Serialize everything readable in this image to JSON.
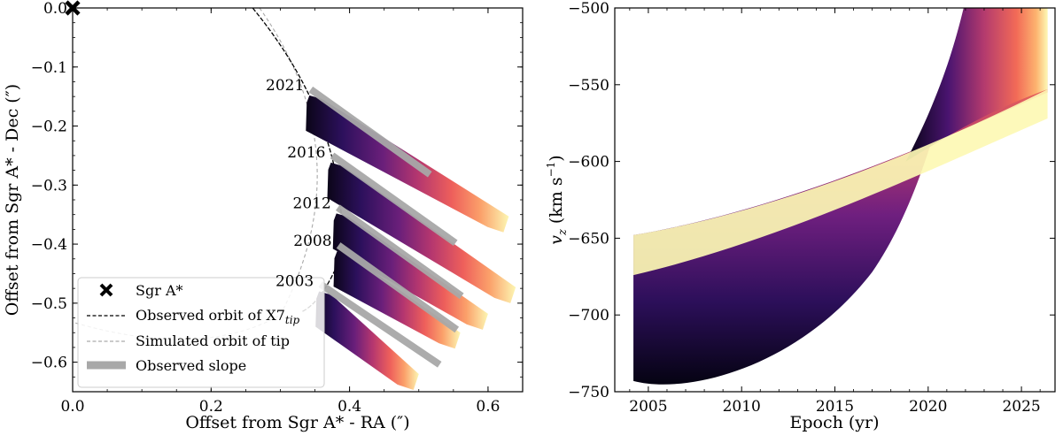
{
  "chart_data": [
    {
      "type": "scatter",
      "title": "",
      "xlabel": "Offset from Sgr A* - RA (″)",
      "ylabel": "Offset from Sgr A* - Dec (″)",
      "xlim": [
        0.0,
        0.65
      ],
      "ylim": [
        -0.65,
        0.0
      ],
      "xticks": [
        {
          "v": 0.0,
          "label": "0.0"
        },
        {
          "v": 0.2,
          "label": "0.2"
        },
        {
          "v": 0.4,
          "label": "0.4"
        },
        {
          "v": 0.6,
          "label": "0.6"
        }
      ],
      "yticks": [
        {
          "v": 0.0,
          "label": "0.0"
        },
        {
          "v": -0.1,
          "label": "−0.1"
        },
        {
          "v": -0.2,
          "label": "−0.2"
        },
        {
          "v": -0.3,
          "label": "−0.3"
        },
        {
          "v": -0.4,
          "label": "−0.4"
        },
        {
          "v": -0.5,
          "label": "−0.5"
        },
        {
          "v": -0.6,
          "label": "−0.6"
        }
      ],
      "sgr_a_star": {
        "x": 0.0,
        "y": 0.0
      },
      "epochs": [
        {
          "year": "2021",
          "tip": [
            0.342,
            -0.148
          ],
          "end": [
            0.63,
            -0.365
          ],
          "slope_start": [
            0.344,
            -0.138
          ],
          "slope_end": [
            0.516,
            -0.282
          ]
        },
        {
          "year": "2016",
          "tip": [
            0.373,
            -0.262
          ],
          "end": [
            0.64,
            -0.485
          ],
          "slope_start": [
            0.375,
            -0.25
          ],
          "slope_end": [
            0.553,
            -0.398
          ]
        },
        {
          "year": "2012",
          "tip": [
            0.381,
            -0.348
          ],
          "end": [
            0.6,
            -0.53
          ],
          "slope_start": [
            0.383,
            -0.338
          ],
          "slope_end": [
            0.562,
            -0.488
          ]
        },
        {
          "year": "2008",
          "tip": [
            0.382,
            -0.412
          ],
          "end": [
            0.56,
            -0.562
          ],
          "slope_start": [
            0.384,
            -0.402
          ],
          "slope_end": [
            0.555,
            -0.545
          ]
        },
        {
          "year": "2003",
          "tip": [
            0.356,
            -0.48
          ],
          "end": [
            0.5,
            -0.632
          ],
          "slope_start": [
            0.358,
            -0.468
          ],
          "slope_end": [
            0.53,
            -0.604
          ]
        }
      ],
      "legend": {
        "position": "lower-left",
        "entries": [
          {
            "label": "Sgr A*",
            "marker": "x"
          },
          {
            "label": "Observed orbit of X7",
            "subscript": "tip",
            "marker": "dashed-black"
          },
          {
            "label": "Simulated orbit of tip",
            "marker": "dashed-gray"
          },
          {
            "label": "Observed slope",
            "marker": "thick-gray"
          }
        ]
      }
    },
    {
      "type": "area",
      "title": "",
      "xlabel": "Epoch (yr)",
      "ylabel": "v",
      "ylabel_sub": "z",
      "ylabel_units": "(km s",
      "ylabel_units_sup": "−1",
      "ylabel_units_close": ")",
      "xlim": [
        2003.2,
        2026.8
      ],
      "ylim": [
        -750,
        -500
      ],
      "xticks": [
        {
          "v": 2005,
          "label": "2005"
        },
        {
          "v": 2010,
          "label": "2010"
        },
        {
          "v": 2015,
          "label": "2015"
        },
        {
          "v": 2020,
          "label": "2020"
        },
        {
          "v": 2025,
          "label": "2025"
        }
      ],
      "yticks": [
        {
          "v": -500,
          "label": "−500"
        },
        {
          "v": -550,
          "label": "−550"
        },
        {
          "v": -600,
          "label": "−600"
        },
        {
          "v": -650,
          "label": "−650"
        },
        {
          "v": -700,
          "label": "−700"
        },
        {
          "v": -750,
          "label": "−750"
        }
      ],
      "epoch_range": [
        2004.2,
        2026.4
      ],
      "series": [
        {
          "name": "bottom-curve",
          "x": [
            2004.2,
            2007,
            2010,
            2013,
            2016,
            2019,
            2022
          ],
          "values": [
            -743,
            -746,
            -738,
            -718,
            -683,
            -626,
            -500
          ]
        },
        {
          "name": "top-curve",
          "x": [
            2004.2,
            2010,
            2015,
            2020,
            2026.4
          ],
          "values": [
            -648,
            -638,
            -621,
            -595,
            -555
          ]
        },
        {
          "name": "upper-dark-edge",
          "x": [
            2018.8,
            2020,
            2022
          ],
          "values": [
            -600,
            -565,
            -500
          ]
        },
        {
          "name": "upper-light-edge",
          "x": [
            2018.8,
            2022,
            2026.4
          ],
          "values": [
            -595,
            -560,
            -500
          ]
        }
      ]
    }
  ]
}
